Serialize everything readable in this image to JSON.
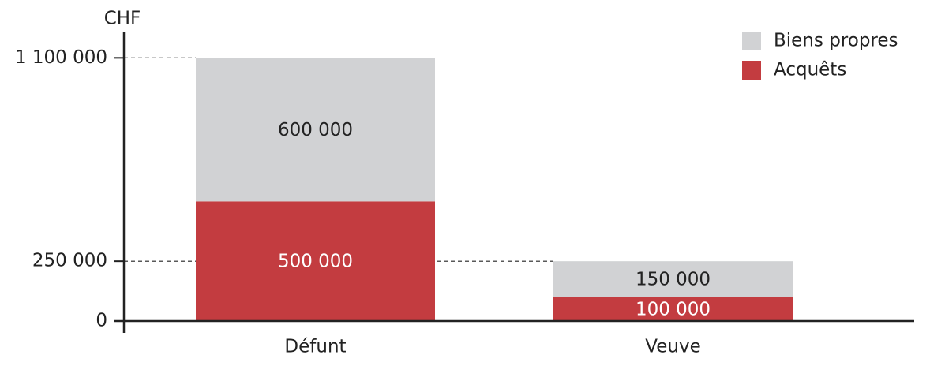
{
  "chart_data": {
    "type": "stacked-bar",
    "y_label": "CHF",
    "categories": [
      "Défunt",
      "Veuve"
    ],
    "series": [
      {
        "name": "Acquêts",
        "color": "#c33c40",
        "values": [
          500000,
          100000
        ],
        "value_labels": [
          "500 000",
          "100 000"
        ]
      },
      {
        "name": "Biens propres",
        "color": "#d1d2d4",
        "values": [
          600000,
          150000
        ],
        "value_labels": [
          "600 000",
          "150 000"
        ]
      }
    ],
    "ylim": [
      0,
      1200000
    ],
    "yticks": [
      0,
      {
        "value": 250000,
        "label": "250 000"
      },
      {
        "value": 1100000,
        "label": "1 100 000"
      }
    ],
    "legend": "upper right"
  }
}
